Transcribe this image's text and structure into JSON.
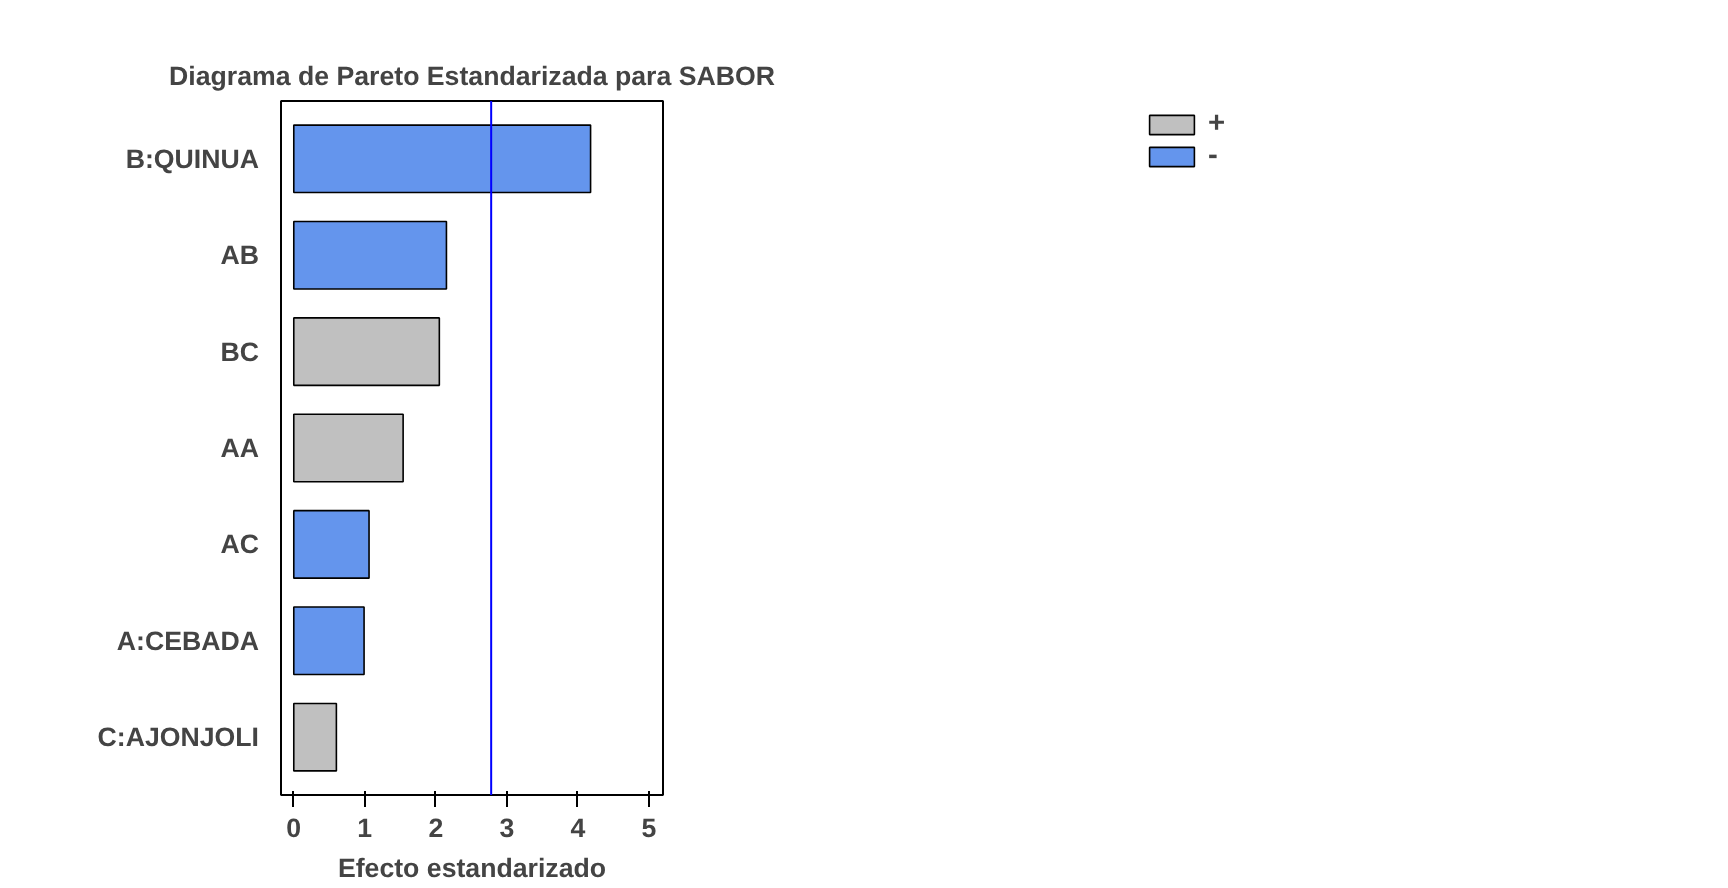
{
  "chart_data": {
    "type": "bar",
    "orientation": "horizontal",
    "title": "Diagrama de Pareto Estandarizada para SABOR",
    "xlabel": "Efecto estandarizado",
    "categories": [
      "B:QUINUA",
      "AB",
      "BC",
      "AA",
      "AC",
      "A:CEBADA",
      "C:AJONJOLI"
    ],
    "series": [
      {
        "name": "+",
        "color": "#c0c0c0",
        "values": [
          null,
          null,
          2.05,
          1.54,
          null,
          null,
          0.6
        ]
      },
      {
        "name": "-",
        "color": "#6495ed",
        "values": [
          4.18,
          2.15,
          null,
          null,
          1.06,
          0.99,
          null
        ]
      }
    ],
    "xlim": [
      -0.18,
      5.2
    ],
    "xticks": [
      0,
      1,
      2,
      3,
      4,
      5
    ],
    "ref_lines": [
      {
        "axis": "x",
        "value": 2.78,
        "color": "#0000ff"
      }
    ],
    "grid": false,
    "legend": "right"
  }
}
